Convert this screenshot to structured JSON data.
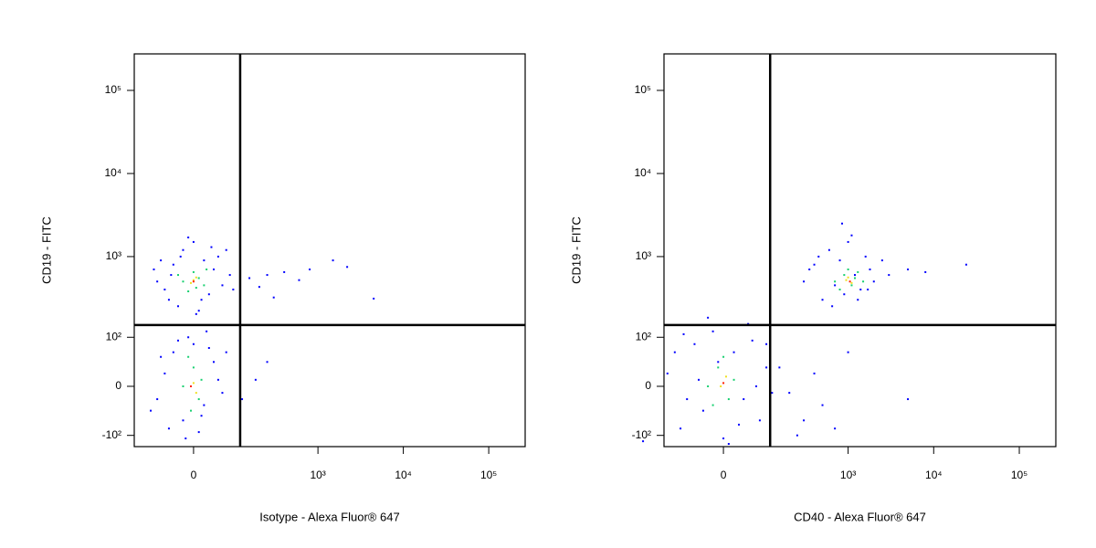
{
  "chart_data": [
    {
      "type": "scatter",
      "x_label": "Isotype - Alexa Fluor® 647",
      "y_label": "CD19 - FITC",
      "xscale": "biexponential",
      "yscale": "biexponential",
      "xlim": [
        -166,
        267000
      ],
      "ylim": [
        -141,
        275000
      ],
      "xticks": [
        0,
        {
          "value": 1000,
          "label": "10³"
        },
        {
          "value": 10000,
          "label": "10⁴"
        },
        {
          "value": 100000,
          "label": "10⁵"
        }
      ],
      "yticks": [
        {
          "value": -100,
          "label": "-10²"
        },
        0,
        {
          "value": 100,
          "label": "10²"
        },
        {
          "value": 1000,
          "label": "10³"
        },
        {
          "value": 10000,
          "label": "10⁴"
        },
        {
          "value": 100000,
          "label": "10⁵"
        }
      ],
      "quadrant_gate": {
        "x": 113,
        "y": 145
      },
      "series": [
        {
          "color": "#0000ff",
          "x": [
            -60,
            -40,
            -20,
            0,
            20,
            40,
            60,
            80,
            -80,
            -50,
            -30,
            10,
            30,
            50,
            -70,
            -10,
            15,
            -90,
            70,
            90,
            -25,
            35,
            5,
            -45,
            150,
            250,
            400,
            800,
            1500,
            2200,
            4500,
            300,
            600,
            200,
            -60,
            -40,
            -20,
            0,
            20,
            40,
            60,
            -80,
            -50,
            10,
            30,
            -30,
            50,
            -70,
            15,
            -10,
            -100,
            70,
            -15,
            25,
            120,
            180,
            250
          ],
          "y": [
            400,
            800,
            1200,
            1500,
            900,
            700,
            450,
            600,
            500,
            300,
            250,
            220,
            350,
            1000,
            900,
            1700,
            300,
            700,
            1200,
            400,
            1000,
            1300,
            200,
            600,
            550,
            600,
            650,
            700,
            900,
            750,
            310,
            320,
            520,
            430,
            20,
            60,
            -60,
            80,
            -30,
            40,
            -10,
            -20,
            -80,
            -90,
            70,
            90,
            10,
            50,
            -50,
            100,
            -40,
            60,
            -110,
            120,
            -20,
            10,
            40
          ]
        },
        {
          "color": "#18d070",
          "x": [
            -20,
            0,
            20,
            -10,
            10,
            -30,
            25,
            5,
            -20,
            0,
            10,
            -10,
            15,
            -5
          ],
          "y": [
            500,
            650,
            450,
            380,
            550,
            600,
            700,
            420,
            0,
            30,
            -20,
            50,
            10,
            -40
          ]
        },
        {
          "color": "#f0e020",
          "x": [
            -5,
            5,
            0,
            0,
            5
          ],
          "y": [
            480,
            560,
            520,
            5,
            -10
          ]
        },
        {
          "color": "#ff2000",
          "x": [
            0,
            -5
          ],
          "y": [
            500,
            0
          ]
        }
      ]
    },
    {
      "type": "scatter",
      "x_label": "CD40 - Alexa Fluor® 647",
      "y_label": "CD19 - FITC",
      "xscale": "biexponential",
      "yscale": "biexponential",
      "xlim": [
        -166,
        267000
      ],
      "ylim": [
        -141,
        275000
      ],
      "xticks": [
        0,
        {
          "value": 1000,
          "label": "10³"
        },
        {
          "value": 10000,
          "label": "10⁴"
        },
        {
          "value": 100000,
          "label": "10⁵"
        }
      ],
      "yticks": [
        {
          "value": -100,
          "label": "-10²"
        },
        0,
        {
          "value": 100,
          "label": "10²"
        },
        {
          "value": 1000,
          "label": "10³"
        },
        {
          "value": 10000,
          "label": "10⁴"
        },
        {
          "value": 100000,
          "label": "10⁵"
        }
      ],
      "quadrant_gate": {
        "x": 113,
        "y": 145
      },
      "series": [
        {
          "color": "#0000ff",
          "x": [
            300,
            400,
            500,
            600,
            700,
            800,
            900,
            1000,
            1200,
            1400,
            1600,
            1800,
            2000,
            2500,
            3000,
            450,
            650,
            1100,
            1300,
            350,
            5000,
            8000,
            24000,
            850,
            1700,
            100,
            200,
            300,
            500,
            700,
            1000,
            5000,
            150,
            400,
            250,
            -150,
            -100,
            -60,
            -40,
            -20,
            0,
            20,
            40,
            60,
            80,
            100,
            -120,
            -80,
            -10,
            30,
            -50,
            120,
            -90,
            50,
            10,
            -300,
            -30,
            70
          ],
          "y": [
            500,
            800,
            300,
            1200,
            450,
            900,
            350,
            1500,
            600,
            400,
            1000,
            700,
            500,
            900,
            600,
            1000,
            250,
            1800,
            300,
            700,
            700,
            650,
            800,
            2500,
            400,
            80,
            -10,
            -60,
            -30,
            -80,
            60,
            -20,
            30,
            20,
            -100,
            20,
            -80,
            80,
            -40,
            120,
            -110,
            60,
            -20,
            90,
            -60,
            30,
            60,
            -20,
            40,
            -70,
            10,
            -10,
            110,
            150,
            -130,
            -120,
            180,
            0
          ]
        },
        {
          "color": "#18d070",
          "x": [
            700,
            900,
            1100,
            1300,
            800,
            1000,
            1200,
            1500,
            -30,
            -10,
            10,
            0,
            -20,
            20
          ],
          "y": [
            500,
            600,
            450,
            650,
            400,
            700,
            550,
            500,
            0,
            30,
            -20,
            50,
            -30,
            10
          ]
        },
        {
          "color": "#f0e020",
          "x": [
            950,
            1100,
            1000,
            -5,
            5
          ],
          "y": [
            520,
            480,
            560,
            0,
            15
          ]
        },
        {
          "color": "#ff2000",
          "x": [
            1050,
            0
          ],
          "y": [
            500,
            5
          ]
        }
      ]
    }
  ]
}
